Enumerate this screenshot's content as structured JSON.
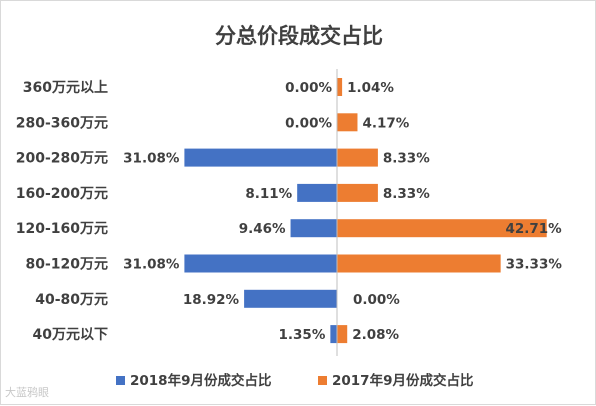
{
  "chart_data": {
    "type": "bar",
    "orientation": "horizontal-diverging",
    "title": "分总价段成交占比",
    "categories": [
      "360万元以上",
      "280-360万元",
      "200-280万元",
      "160-200万元",
      "120-160万元",
      "80-120万元",
      "40-80万元",
      "40万元以下"
    ],
    "series": [
      {
        "name": "2018年9月份成交占比",
        "color": "#4472c4",
        "values": [
          0.0,
          0.0,
          31.08,
          8.11,
          9.46,
          31.08,
          18.92,
          1.35
        ],
        "labels": [
          "0.00%",
          "0.00%",
          "31.08%",
          "8.11%",
          "9.46%",
          "31.08%",
          "18.92%",
          "1.35%"
        ]
      },
      {
        "name": "2017年9月份成交占比",
        "color": "#ed7d31",
        "values": [
          1.04,
          4.17,
          8.33,
          8.33,
          42.71,
          33.33,
          0.0,
          2.08
        ],
        "labels": [
          "1.04%",
          "4.17%",
          "8.33%",
          "8.33%",
          "42.71%",
          "33.33%",
          "0.00%",
          "2.08%"
        ]
      }
    ],
    "legend_position": "bottom",
    "grid": false
  },
  "watermark": "大蓝鸦眼"
}
